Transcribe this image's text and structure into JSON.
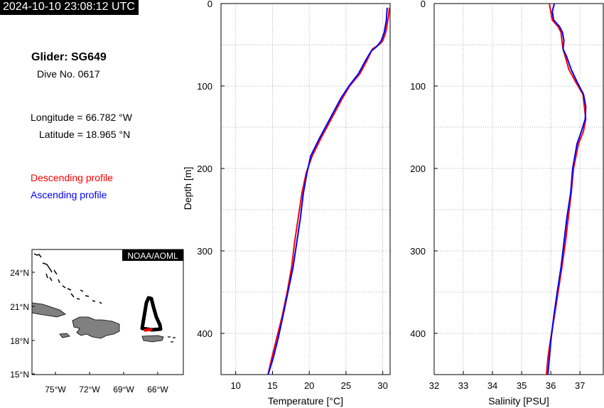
{
  "timestamp": "2024-10-10 23:08:12 UTC",
  "glider": {
    "name": "Glider: SG649",
    "dive": "Dive No. 0617",
    "longitude": "Longitude = 66.782 °W",
    "latitude": "Latitude = 18.965 °N"
  },
  "legend": {
    "descending": "Descending profile",
    "ascending": "Ascending profile"
  },
  "colors": {
    "descending": "#ff0000",
    "ascending": "#0000ff",
    "land": "#808080",
    "track": "#000000",
    "current_segment": "#ff0000"
  },
  "map": {
    "credit": "NOAA/AOML",
    "lat_ticks": [
      "24°N",
      "21°N",
      "18°N",
      "15°N"
    ],
    "lon_ticks": [
      "75°W",
      "72°W",
      "69°W",
      "66°W"
    ]
  },
  "chart_data": [
    {
      "type": "line",
      "title": "",
      "xlabel": "Temperature [°C]",
      "ylabel": "Depth [m]",
      "xlim": [
        8,
        31
      ],
      "ylim": [
        450,
        0
      ],
      "x_ticks": [
        10,
        15,
        20,
        25,
        30
      ],
      "y_ticks": [
        0,
        100,
        200,
        300,
        400
      ],
      "grid": true,
      "series": [
        {
          "name": "Descending profile",
          "color": "#ff0000",
          "x": [
            30.9,
            30.8,
            30.6,
            30.4,
            30.0,
            29.5,
            28.6,
            27.8,
            26.9,
            25.5,
            24.5,
            23.6,
            22.7,
            21.5,
            20.4,
            19.6,
            19.0,
            18.5,
            18.0,
            17.6,
            17.0,
            16.3,
            15.6,
            14.9,
            14.4
          ],
          "y": [
            5,
            15,
            25,
            35,
            45,
            50,
            55,
            70,
            85,
            100,
            115,
            130,
            145,
            165,
            185,
            205,
            230,
            260,
            290,
            320,
            350,
            380,
            405,
            430,
            450
          ]
        },
        {
          "name": "Ascending profile",
          "color": "#0000ff",
          "x": [
            30.6,
            30.5,
            30.2,
            29.8,
            29.2,
            28.4,
            27.6,
            26.7,
            25.4,
            24.3,
            23.4,
            22.5,
            21.3,
            20.2,
            19.7,
            19.2,
            18.8,
            18.3,
            17.8,
            17.1,
            16.4,
            15.8,
            15.1,
            14.4
          ],
          "y": [
            5,
            20,
            35,
            45,
            52,
            58,
            70,
            85,
            100,
            115,
            130,
            145,
            165,
            185,
            205,
            230,
            260,
            290,
            320,
            350,
            380,
            405,
            430,
            450
          ]
        }
      ]
    },
    {
      "type": "line",
      "title": "",
      "xlabel": "Salinity [PSU]",
      "ylabel": "",
      "xlim": [
        32,
        37.8
      ],
      "ylim": [
        450,
        0
      ],
      "x_ticks": [
        32,
        33,
        34,
        35,
        36,
        37
      ],
      "y_ticks": [
        0,
        100,
        200,
        300,
        400
      ],
      "grid": true,
      "series": [
        {
          "name": "Descending profile",
          "color": "#ff0000",
          "x": [
            35.95,
            36.0,
            36.05,
            36.25,
            36.35,
            36.38,
            36.42,
            36.5,
            36.62,
            36.85,
            37.1,
            37.15,
            37.2,
            37.12,
            36.95,
            36.78,
            36.7,
            36.6,
            36.5,
            36.38,
            36.25,
            36.12,
            35.98,
            35.9,
            35.85
          ],
          "y": [
            0,
            10,
            20,
            28,
            35,
            45,
            55,
            65,
            80,
            95,
            110,
            125,
            140,
            155,
            170,
            200,
            230,
            260,
            290,
            320,
            350,
            380,
            410,
            430,
            450
          ]
        },
        {
          "name": "Ascending profile",
          "color": "#0000ff",
          "x": [
            36.12,
            36.05,
            36.1,
            36.3,
            36.4,
            36.45,
            36.42,
            36.55,
            36.7,
            36.9,
            37.12,
            37.2,
            37.18,
            37.05,
            36.9,
            36.75,
            36.68,
            36.55,
            36.45,
            36.35,
            36.22,
            36.1,
            36.0,
            35.95,
            35.9
          ],
          "y": [
            0,
            10,
            20,
            28,
            35,
            45,
            55,
            65,
            80,
            95,
            110,
            125,
            140,
            155,
            170,
            200,
            230,
            260,
            290,
            320,
            350,
            380,
            410,
            430,
            450
          ]
        }
      ]
    }
  ]
}
